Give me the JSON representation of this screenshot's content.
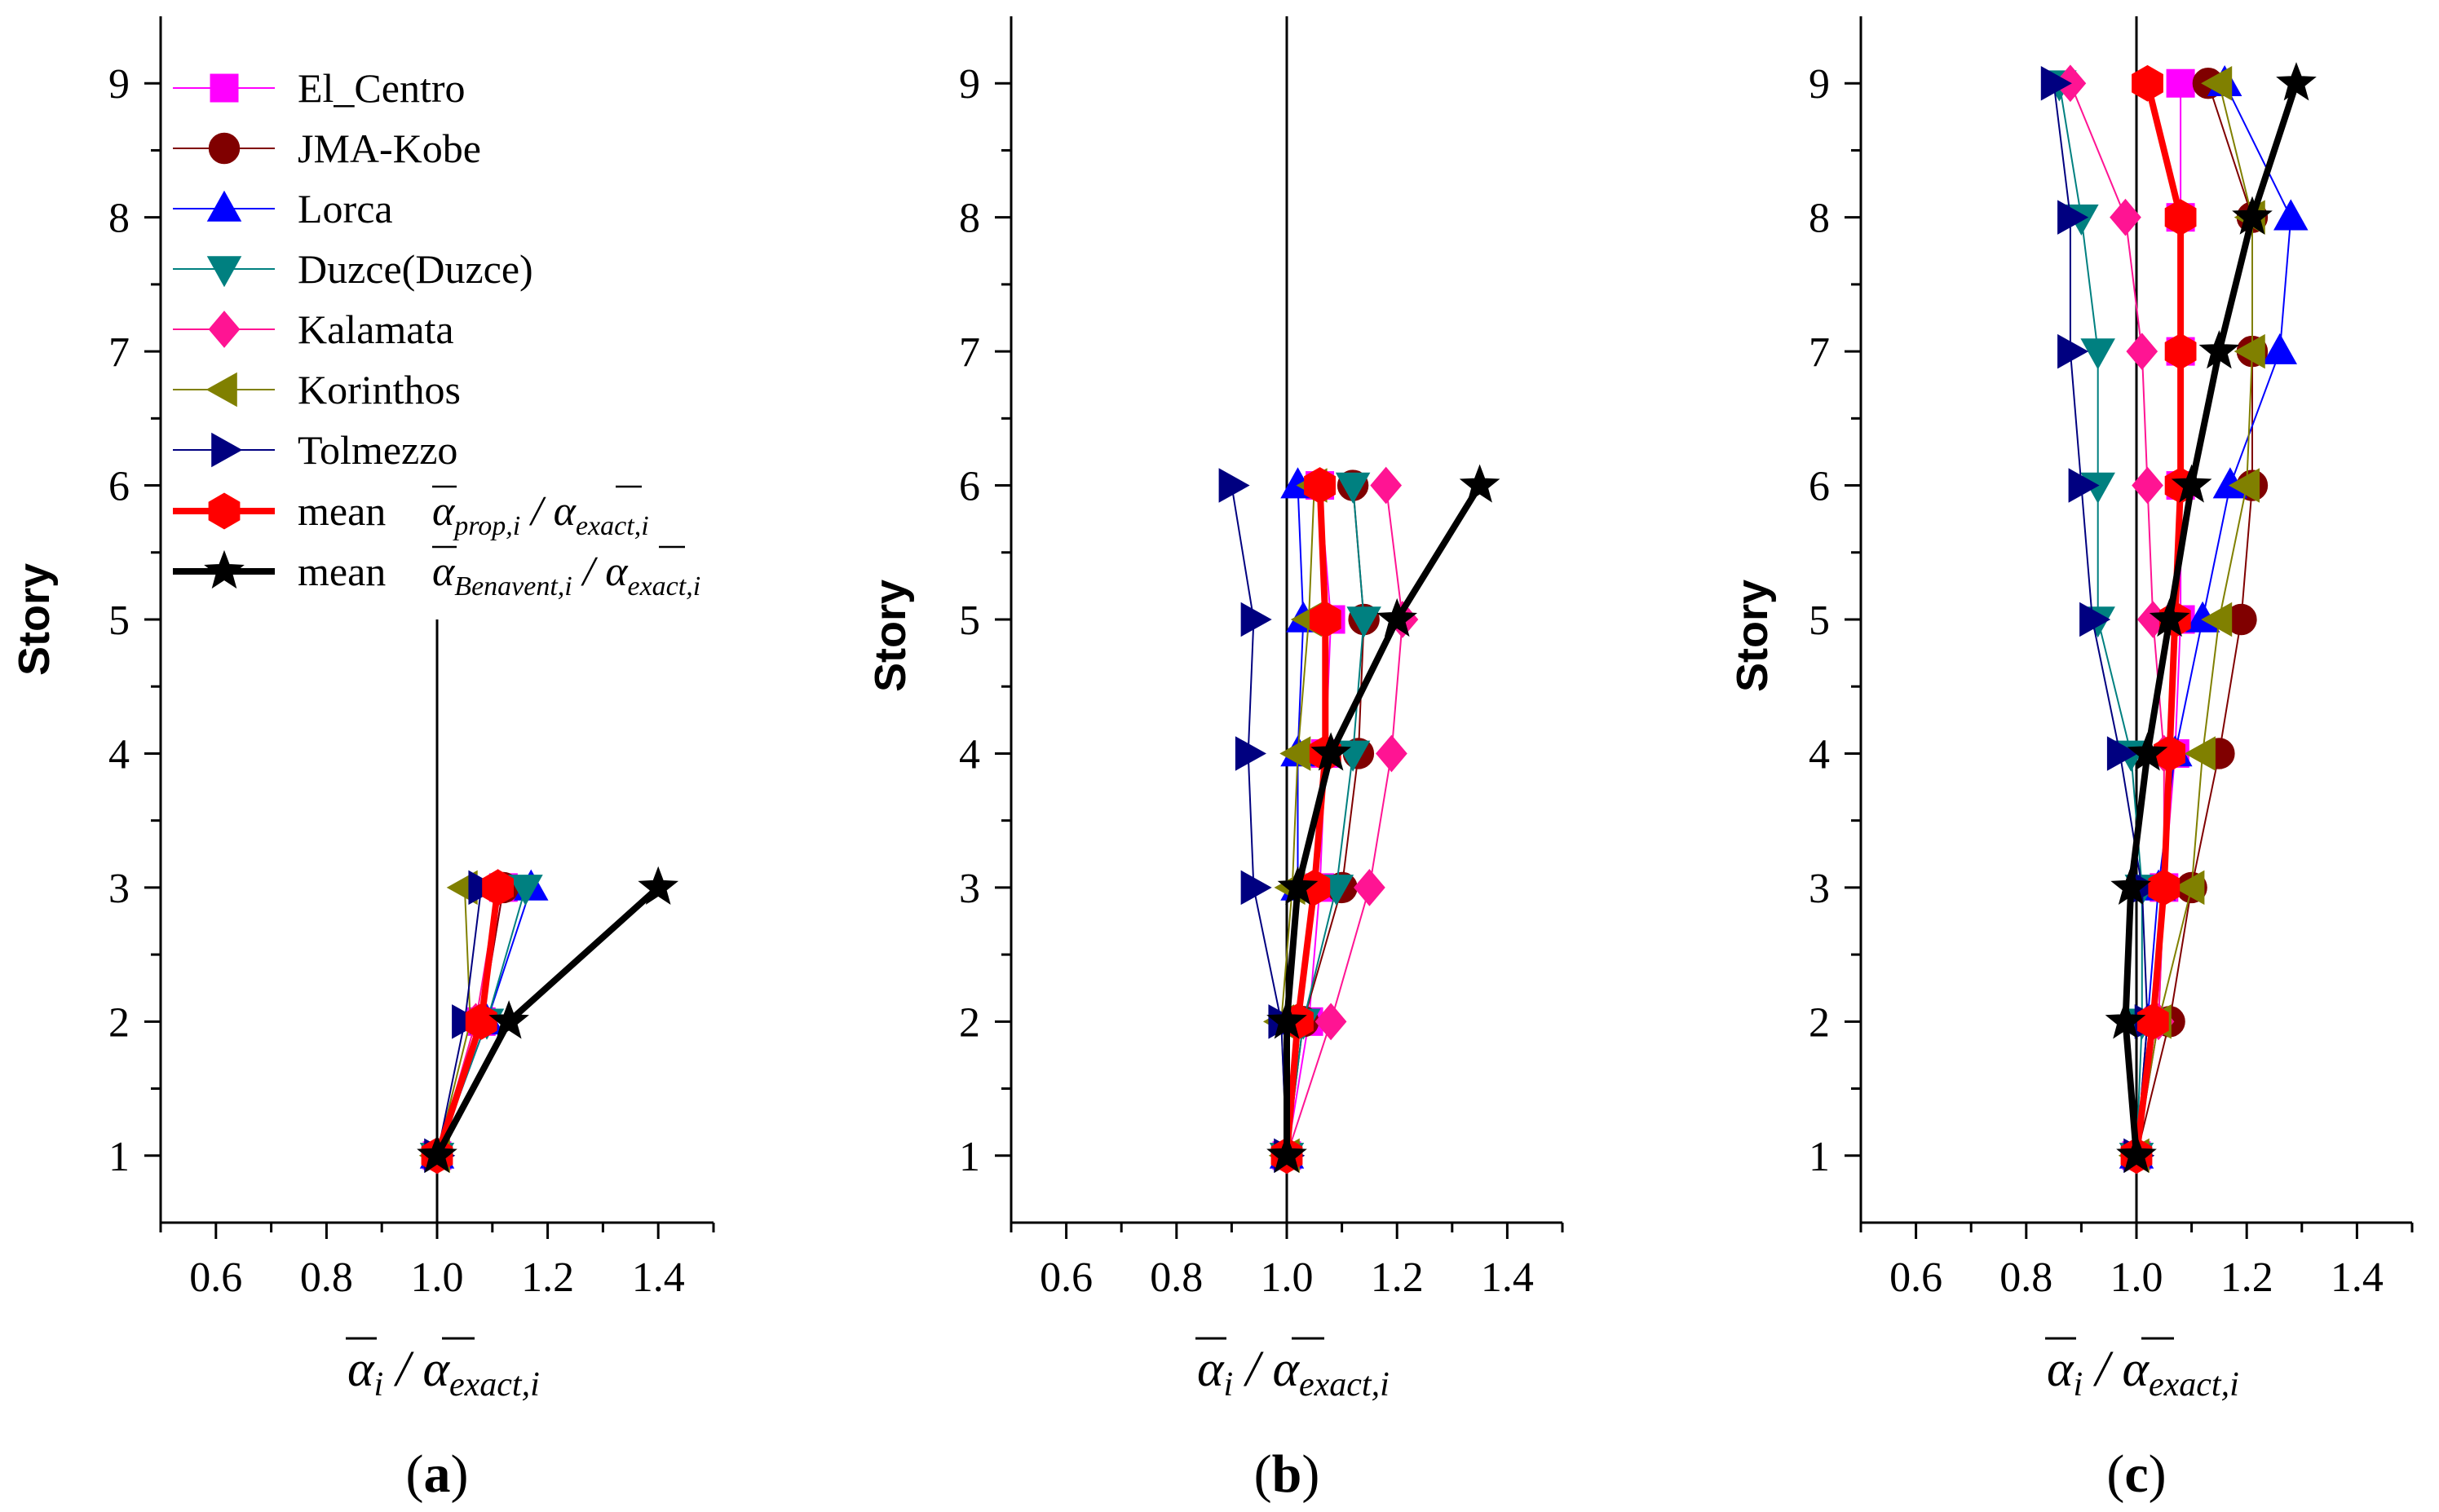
{
  "figure": {
    "label_open": "(",
    "label_close": ")"
  },
  "legend": {
    "entries": [
      {
        "series": "El_Centro",
        "label": "El_Centro"
      },
      {
        "series": "JMA-Kobe",
        "label": "JMA-Kobe"
      },
      {
        "series": "Lorca",
        "label": "Lorca"
      },
      {
        "series": "Duzce(Duzce)",
        "label": "Duzce(Duzce)"
      },
      {
        "series": "Kalamata",
        "label": "Kalamata"
      },
      {
        "series": "Korinthos",
        "label": "Korinthos"
      },
      {
        "series": "Tolmezzo",
        "label": "Tolmezzo"
      },
      {
        "series": "mean_prop",
        "label": "mean",
        "formula": {
          "num": "α",
          "num_sub": "prop,i",
          "sep": " / ",
          "den": "α",
          "den_sub": "exact,i"
        }
      },
      {
        "series": "mean_benavent",
        "label": "mean",
        "formula": {
          "num": "α",
          "num_sub": "Benavent,i",
          "sep": " / ",
          "den": "α",
          "den_sub": "exact,i"
        }
      }
    ]
  },
  "styles": {
    "El_Centro": {
      "color": "#ff00ff",
      "marker": "square",
      "width": 2
    },
    "JMA-Kobe": {
      "color": "#800000",
      "marker": "circle",
      "width": 2
    },
    "Lorca": {
      "color": "#0000ff",
      "marker": "triangle-up",
      "width": 2
    },
    "Duzce(Duzce)": {
      "color": "#008080",
      "marker": "triangle-down",
      "width": 2
    },
    "Kalamata": {
      "color": "#ff1493",
      "marker": "diamond",
      "width": 2
    },
    "Korinthos": {
      "color": "#808000",
      "marker": "triangle-left",
      "width": 2
    },
    "Tolmezzo": {
      "color": "#000080",
      "marker": "triangle-right",
      "width": 2
    },
    "mean_prop": {
      "color": "#ff0000",
      "marker": "hexagon",
      "width": 8
    },
    "mean_benavent": {
      "color": "#000000",
      "marker": "star",
      "width": 8
    }
  },
  "chart_data": [
    {
      "type": "line",
      "panel_label": "a",
      "title": "",
      "xlabel": {
        "main": "α",
        "sub_main": "i",
        "sep": " / ",
        "den": "α",
        "den_sub": "exact,i"
      },
      "ylabel": "Story",
      "xlim": [
        0.5,
        1.5
      ],
      "ylim": [
        0.5,
        9.5
      ],
      "xticks": [
        0.6,
        0.8,
        1.0,
        1.2,
        1.4
      ],
      "xtick_labels": [
        "0.6",
        "0.8",
        "1.0",
        "1.2",
        "1.4"
      ],
      "yticks": [
        1,
        2,
        3,
        4,
        5,
        6,
        7,
        8,
        9
      ],
      "ytick_labels": [
        "1",
        "2",
        "3",
        "4",
        "5",
        "6",
        "7",
        "8",
        "9"
      ],
      "reference_line": {
        "x": 1.0,
        "y_range": [
          0.5,
          5.0
        ]
      },
      "series": [
        {
          "name": "El_Centro",
          "x": [
            1.0,
            1.08,
            1.12
          ],
          "y": [
            1,
            2,
            3
          ]
        },
        {
          "name": "JMA-Kobe",
          "x": [
            1.0,
            1.08,
            1.12
          ],
          "y": [
            1,
            2,
            3
          ]
        },
        {
          "name": "Lorca",
          "x": [
            1.0,
            1.09,
            1.17
          ],
          "y": [
            1,
            2,
            3
          ]
        },
        {
          "name": "Duzce(Duzce)",
          "x": [
            1.0,
            1.09,
            1.16
          ],
          "y": [
            1,
            2,
            3
          ]
        },
        {
          "name": "Kalamata",
          "x": [
            1.0,
            1.07,
            1.11
          ],
          "y": [
            1,
            2,
            3
          ]
        },
        {
          "name": "Korinthos",
          "x": [
            1.0,
            1.06,
            1.05
          ],
          "y": [
            1,
            2,
            3
          ]
        },
        {
          "name": "Tolmezzo",
          "x": [
            1.0,
            1.05,
            1.08
          ],
          "y": [
            1,
            2,
            3
          ]
        },
        {
          "name": "mean_prop",
          "x": [
            1.0,
            1.08,
            1.11
          ],
          "y": [
            1,
            2,
            3
          ]
        },
        {
          "name": "mean_benavent",
          "x": [
            1.0,
            1.13,
            1.4
          ],
          "y": [
            1,
            2,
            3
          ]
        }
      ]
    },
    {
      "type": "line",
      "panel_label": "b",
      "title": "",
      "xlabel": {
        "main": "α",
        "sub_main": "i",
        "sep": " / ",
        "den": "α",
        "den_sub": "exact,i"
      },
      "ylabel": "Story",
      "xlim": [
        0.5,
        1.5
      ],
      "ylim": [
        0.5,
        9.5
      ],
      "xticks": [
        0.6,
        0.8,
        1.0,
        1.2,
        1.4
      ],
      "xtick_labels": [
        "0.6",
        "0.8",
        "1.0",
        "1.2",
        "1.4"
      ],
      "yticks": [
        1,
        2,
        3,
        4,
        5,
        6,
        7,
        8,
        9
      ],
      "ytick_labels": [
        "1",
        "2",
        "3",
        "4",
        "5",
        "6",
        "7",
        "8",
        "9"
      ],
      "reference_line": {
        "x": 1.0,
        "y_range": [
          0.5,
          9.5
        ]
      },
      "series": [
        {
          "name": "El_Centro",
          "x": [
            1.0,
            1.04,
            1.06,
            1.07,
            1.08,
            1.06
          ],
          "y": [
            1,
            2,
            3,
            4,
            5,
            6
          ]
        },
        {
          "name": "JMA-Kobe",
          "x": [
            1.0,
            1.03,
            1.1,
            1.13,
            1.14,
            1.12
          ],
          "y": [
            1,
            2,
            3,
            4,
            5,
            6
          ]
        },
        {
          "name": "Lorca",
          "x": [
            1.0,
            1.0,
            1.02,
            1.02,
            1.03,
            1.02
          ],
          "y": [
            1,
            2,
            3,
            4,
            5,
            6
          ]
        },
        {
          "name": "Duzce(Duzce)",
          "x": [
            1.0,
            1.03,
            1.09,
            1.12,
            1.14,
            1.12
          ],
          "y": [
            1,
            2,
            3,
            4,
            5,
            6
          ]
        },
        {
          "name": "Kalamata",
          "x": [
            1.0,
            1.08,
            1.15,
            1.19,
            1.21,
            1.18
          ],
          "y": [
            1,
            2,
            3,
            4,
            5,
            6
          ]
        },
        {
          "name": "Korinthos",
          "x": [
            1.0,
            0.99,
            1.01,
            1.02,
            1.04,
            1.05
          ],
          "y": [
            1,
            2,
            3,
            4,
            5,
            6
          ]
        },
        {
          "name": "Tolmezzo",
          "x": [
            1.0,
            0.99,
            0.94,
            0.93,
            0.94,
            0.9
          ],
          "y": [
            1,
            2,
            3,
            4,
            5,
            6
          ]
        },
        {
          "name": "mean_prop",
          "x": [
            1.0,
            1.02,
            1.05,
            1.07,
            1.07,
            1.06
          ],
          "y": [
            1,
            2,
            3,
            4,
            5,
            6
          ]
        },
        {
          "name": "mean_benavent",
          "x": [
            1.0,
            1.0,
            1.02,
            1.08,
            1.2,
            1.35
          ],
          "y": [
            1,
            2,
            3,
            4,
            5,
            6
          ]
        }
      ]
    },
    {
      "type": "line",
      "panel_label": "c",
      "title": "",
      "xlabel": {
        "main": "α",
        "sub_main": "i",
        "sep": " / ",
        "den": "α",
        "den_sub": "exact,i"
      },
      "ylabel": "Story",
      "xlim": [
        0.5,
        1.5
      ],
      "ylim": [
        0.5,
        9.5
      ],
      "xticks": [
        0.6,
        0.8,
        1.0,
        1.2,
        1.4
      ],
      "xtick_labels": [
        "0.6",
        "0.8",
        "1.0",
        "1.2",
        "1.4"
      ],
      "yticks": [
        1,
        2,
        3,
        4,
        5,
        6,
        7,
        8,
        9
      ],
      "ytick_labels": [
        "1",
        "2",
        "3",
        "4",
        "5",
        "6",
        "7",
        "8",
        "9"
      ],
      "reference_line": {
        "x": 1.0,
        "y_range": [
          0.5,
          9.5
        ]
      },
      "series": [
        {
          "name": "El_Centro",
          "x": [
            1.0,
            1.04,
            1.05,
            1.07,
            1.08,
            1.08,
            1.08,
            1.08,
            1.08
          ],
          "y": [
            1,
            2,
            3,
            4,
            5,
            6,
            7,
            8,
            9
          ]
        },
        {
          "name": "JMA-Kobe",
          "x": [
            1.0,
            1.06,
            1.1,
            1.15,
            1.19,
            1.21,
            1.21,
            1.21,
            1.13
          ],
          "y": [
            1,
            2,
            3,
            4,
            5,
            6,
            7,
            8,
            9
          ]
        },
        {
          "name": "Lorca",
          "x": [
            1.0,
            1.02,
            1.04,
            1.07,
            1.12,
            1.17,
            1.26,
            1.28,
            1.16
          ],
          "y": [
            1,
            2,
            3,
            4,
            5,
            6,
            7,
            8,
            9
          ]
        },
        {
          "name": "Duzce(Duzce)",
          "x": [
            1.0,
            1.01,
            1.01,
            0.99,
            0.93,
            0.93,
            0.93,
            0.9,
            0.86
          ],
          "y": [
            1,
            2,
            3,
            4,
            5,
            6,
            7,
            8,
            9
          ]
        },
        {
          "name": "Kalamata",
          "x": [
            1.0,
            1.04,
            1.05,
            1.05,
            1.03,
            1.02,
            1.01,
            0.98,
            0.88
          ],
          "y": [
            1,
            2,
            3,
            4,
            5,
            6,
            7,
            8,
            9
          ]
        },
        {
          "name": "Korinthos",
          "x": [
            1.0,
            1.04,
            1.1,
            1.12,
            1.15,
            1.2,
            1.21,
            1.21,
            1.15
          ],
          "y": [
            1,
            2,
            3,
            4,
            5,
            6,
            7,
            8,
            9
          ]
        },
        {
          "name": "Tolmezzo",
          "x": [
            1.0,
            1.02,
            1.01,
            0.97,
            0.92,
            0.9,
            0.88,
            0.88,
            0.85
          ],
          "y": [
            1,
            2,
            3,
            4,
            5,
            6,
            7,
            8,
            9
          ]
        },
        {
          "name": "mean_prop",
          "x": [
            1.0,
            1.03,
            1.05,
            1.06,
            1.07,
            1.08,
            1.08,
            1.08,
            1.02
          ],
          "y": [
            1,
            2,
            3,
            4,
            5,
            6,
            7,
            8,
            9
          ]
        },
        {
          "name": "mean_benavent",
          "x": [
            1.0,
            0.98,
            0.99,
            1.02,
            1.06,
            1.1,
            1.15,
            1.21,
            1.29
          ],
          "y": [
            1,
            2,
            3,
            4,
            5,
            6,
            7,
            8,
            9
          ]
        }
      ]
    }
  ]
}
